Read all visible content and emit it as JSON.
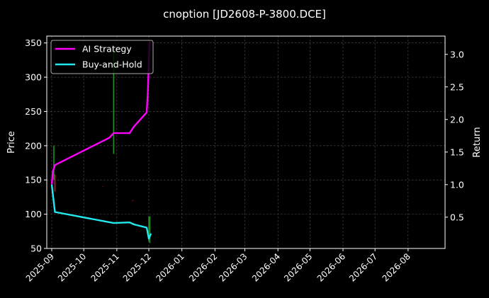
{
  "chart_data": {
    "type": "line",
    "title": "cnoption [JD2608-P-3800.DCE]",
    "ylabel": "Price",
    "y2label": "Return",
    "xlim": [
      "2025-09-01",
      "2026-08-31"
    ],
    "ylim": [
      50,
      360
    ],
    "y2lim": [
      0.02,
      3.28
    ],
    "grid": true,
    "legend_position": "top-left",
    "x_ticks": [
      "2025-09",
      "2025-10",
      "2025-11",
      "2025-12",
      "2026-01",
      "2026-02",
      "2026-03",
      "2026-04",
      "2026-05",
      "2026-06",
      "2026-07",
      "2026-08"
    ],
    "y_ticks": [
      50,
      100,
      150,
      200,
      250,
      300,
      350
    ],
    "y2_ticks": [
      0.5,
      1.0,
      1.5,
      2.0,
      2.5,
      3.0
    ],
    "series": [
      {
        "name": "AI Strategy",
        "color": "#ff00ff",
        "axis": "right",
        "points": [
          [
            "2025-09-01",
            1.0
          ],
          [
            "2025-09-02",
            1.2
          ],
          [
            "2025-09-04",
            1.3
          ],
          [
            "2025-10-25",
            1.72
          ],
          [
            "2025-10-29",
            1.79
          ],
          [
            "2025-11-13",
            1.79
          ],
          [
            "2025-11-17",
            1.89
          ],
          [
            "2025-11-29",
            2.11
          ],
          [
            "2025-11-30",
            2.4
          ],
          [
            "2025-12-01",
            2.85
          ],
          [
            "2025-12-02",
            3.2
          ]
        ]
      },
      {
        "name": "Buy-and-Hold",
        "color": "#22e8f0",
        "axis": "right",
        "points": [
          [
            "2025-09-01",
            1.0
          ],
          [
            "2025-09-04",
            0.58
          ],
          [
            "2025-10-29",
            0.41
          ],
          [
            "2025-11-13",
            0.42
          ],
          [
            "2025-11-17",
            0.39
          ],
          [
            "2025-11-29",
            0.34
          ],
          [
            "2025-12-01",
            0.17
          ],
          [
            "2025-12-02",
            0.21
          ],
          [
            "2025-12-03",
            0.25
          ]
        ]
      }
    ],
    "candles": [
      {
        "date": "2025-09-03",
        "open": 150,
        "close": 200,
        "color": "#1e8f1e"
      },
      {
        "date": "2025-09-04",
        "open": 158,
        "close": 133,
        "color": "#c0202a"
      },
      {
        "date": "2025-10-19",
        "open": 141,
        "close": 140,
        "color": "#8b0000"
      },
      {
        "date": "2025-10-29",
        "open": 188,
        "close": 342,
        "color": "#1e8f1e"
      },
      {
        "date": "2025-11-16",
        "open": 121,
        "close": 119,
        "color": "#8b0000"
      },
      {
        "date": "2025-12-01",
        "open": 60,
        "close": 97,
        "color": "#1e8f1e"
      },
      {
        "date": "2025-12-02",
        "open": 58,
        "close": 97,
        "color": "#1e8f1e"
      }
    ]
  }
}
